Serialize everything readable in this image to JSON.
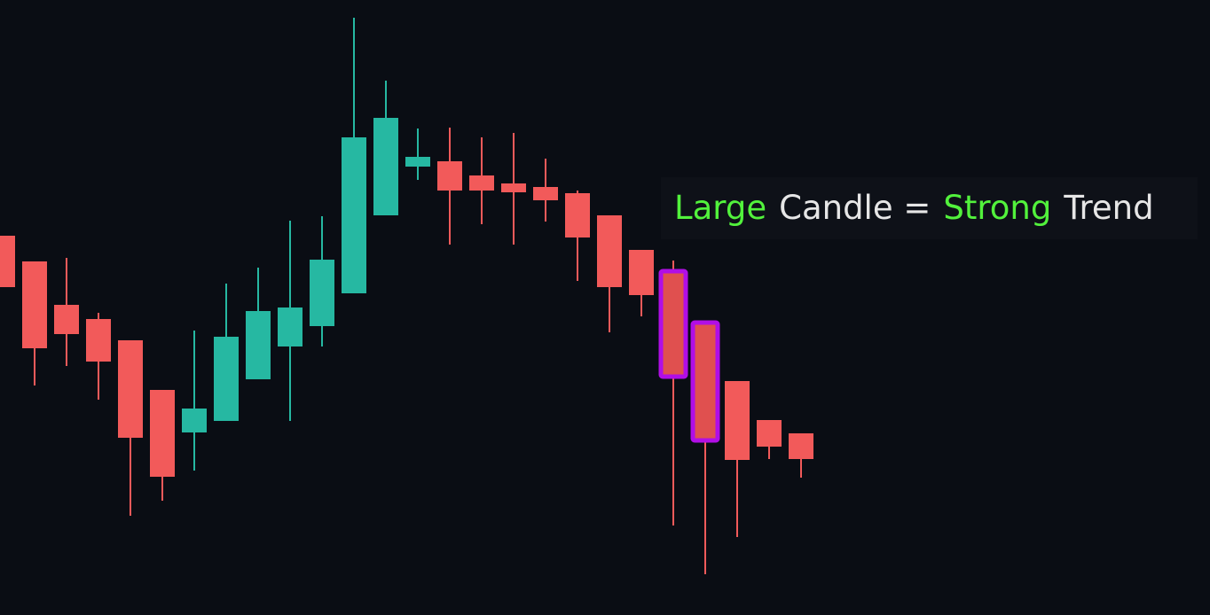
{
  "chart_data": {
    "type": "candlestick",
    "open": [
      428,
      399,
      350,
      334,
      310,
      254,
      206,
      219,
      266,
      303,
      326,
      363,
      451,
      506,
      512,
      496,
      487,
      483,
      476,
      451,
      412,
      388,
      330,
      264,
      220,
      205
    ],
    "high": [
      428,
      399,
      403,
      341,
      310,
      254,
      321,
      374,
      392,
      445,
      450,
      674,
      603,
      549,
      550,
      539,
      544,
      515,
      479,
      451,
      412,
      400,
      330,
      264,
      220,
      205
    ],
    "low": [
      370,
      259,
      281,
      243,
      112,
      129,
      163,
      219,
      266,
      219,
      303,
      363,
      451,
      491,
      418,
      441,
      418,
      444,
      377,
      319,
      337,
      101,
      46,
      88,
      176,
      155
    ],
    "close": [
      370,
      301,
      317,
      286,
      200,
      156,
      233,
      314,
      343,
      347,
      401,
      539,
      561,
      517,
      479,
      479,
      477,
      468,
      426,
      370,
      361,
      269,
      197,
      175,
      190,
      176
    ],
    "up_color": "#26b8a2",
    "down_color": "#f25a5a",
    "ylim": [
      0,
      694
    ],
    "highlight": [
      21,
      22
    ],
    "highlight_color": "#b10ee6",
    "annotation": [
      {
        "text": "Large",
        "color": "#52f23c"
      },
      {
        "text": "Candle =",
        "color": "#e6e6e6"
      },
      {
        "text": "Strong",
        "color": "#52f23c"
      },
      {
        "text": "Trend",
        "color": "#e6e6e6"
      }
    ]
  }
}
